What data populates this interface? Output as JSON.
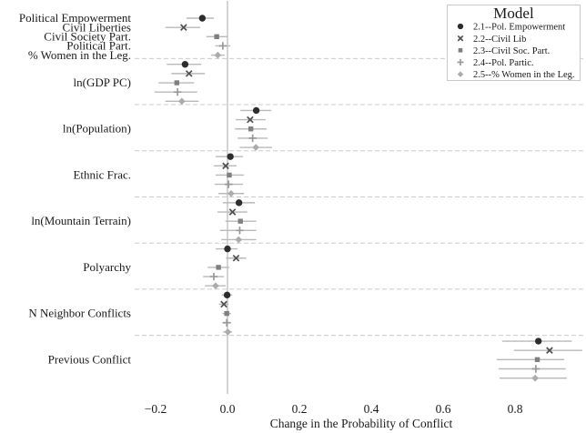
{
  "chart_data": {
    "type": "scatter",
    "subtype": "coefficient-dot-whisker",
    "title": "",
    "xlabel": "Change in the Probability of Conflict",
    "ylabel": "",
    "xlim": [
      -0.26,
      1.0
    ],
    "x_ticks": [
      -0.2,
      0.0,
      0.2,
      0.4,
      0.6,
      0.8
    ],
    "x_tick_labels": [
      "−0.2",
      "0.0",
      "0.2",
      "0.4",
      "0.6",
      "0.8"
    ],
    "grid": "horizontal dashed separators between terms; solid vertical reference line at 0",
    "legend": {
      "title": "Model",
      "position": "upper right"
    },
    "models": [
      {
        "id": "2.1",
        "label": "2.1--Pol. Empowerment",
        "marker": "circle",
        "color": "#2d2d2d"
      },
      {
        "id": "2.2",
        "label": "2.2--Civil Lib",
        "marker": "x",
        "color": "#4f4f4f"
      },
      {
        "id": "2.3",
        "label": "2.3--Civil Soc. Part.",
        "marker": "square",
        "color": "#7f7f7f"
      },
      {
        "id": "2.4",
        "label": "2.4--Pol. Partic.",
        "marker": "plus",
        "color": "#999999"
      },
      {
        "id": "2.5",
        "label": "2.5--% Women in the Leg.",
        "marker": "diamond",
        "color": "#ababab"
      }
    ],
    "groups": [
      {
        "label": "",
        "rows": [
          {
            "row_label": "Political Empowerment",
            "model": "2.1",
            "value": -0.07,
            "ci": [
              -0.114,
              -0.038
            ]
          },
          {
            "row_label": "Civil Liberties",
            "model": "2.2",
            "value": -0.122,
            "ci": [
              -0.173,
              -0.076
            ]
          },
          {
            "row_label": "Civil Society Part.",
            "model": "2.3",
            "value": -0.03,
            "ci": [
              -0.059,
              0.0
            ]
          },
          {
            "row_label": "Political Part.",
            "model": "2.4",
            "value": -0.013,
            "ci": [
              -0.034,
              0.008
            ]
          },
          {
            "row_label": "% Women in the Leg.",
            "model": "2.5",
            "value": -0.027,
            "ci": [
              -0.046,
              -0.008
            ]
          }
        ]
      },
      {
        "label": "ln(GDP PC)",
        "rows": [
          {
            "model": "2.1",
            "value": -0.118,
            "ci": [
              -0.169,
              -0.073
            ]
          },
          {
            "model": "2.2",
            "value": -0.107,
            "ci": [
              -0.156,
              -0.063
            ]
          },
          {
            "model": "2.3",
            "value": -0.141,
            "ci": [
              -0.192,
              -0.093
            ]
          },
          {
            "model": "2.4",
            "value": -0.139,
            "ci": [
              -0.203,
              -0.084
            ]
          },
          {
            "model": "2.5",
            "value": -0.127,
            "ci": [
              -0.173,
              -0.08
            ]
          }
        ]
      },
      {
        "label": "ln(Population)",
        "rows": [
          {
            "model": "2.1",
            "value": 0.08,
            "ci": [
              0.036,
              0.122
            ]
          },
          {
            "model": "2.2",
            "value": 0.063,
            "ci": [
              0.023,
              0.106
            ]
          },
          {
            "model": "2.3",
            "value": 0.065,
            "ci": [
              0.021,
              0.109
            ]
          },
          {
            "model": "2.4",
            "value": 0.07,
            "ci": [
              0.028,
              0.112
            ]
          },
          {
            "model": "2.5",
            "value": 0.079,
            "ci": [
              0.034,
              0.124
            ]
          }
        ]
      },
      {
        "label": "Ethnic Frac.",
        "rows": [
          {
            "model": "2.1",
            "value": 0.008,
            "ci": [
              -0.033,
              0.043
            ]
          },
          {
            "model": "2.2",
            "value": -0.005,
            "ci": [
              -0.038,
              0.025
            ]
          },
          {
            "model": "2.3",
            "value": 0.005,
            "ci": [
              -0.033,
              0.046
            ]
          },
          {
            "model": "2.4",
            "value": 0.003,
            "ci": [
              -0.036,
              0.043
            ]
          },
          {
            "model": "2.5",
            "value": 0.01,
            "ci": [
              -0.025,
              0.046
            ]
          }
        ]
      },
      {
        "label": "ln(Mountain Terrain)",
        "rows": [
          {
            "model": "2.1",
            "value": 0.032,
            "ci": [
              -0.013,
              0.076
            ]
          },
          {
            "model": "2.2",
            "value": 0.014,
            "ci": [
              -0.028,
              0.055
            ]
          },
          {
            "model": "2.3",
            "value": 0.036,
            "ci": [
              -0.006,
              0.08
            ]
          },
          {
            "model": "2.4",
            "value": 0.034,
            "ci": [
              -0.021,
              0.08
            ]
          },
          {
            "model": "2.5",
            "value": 0.031,
            "ci": [
              -0.017,
              0.08
            ]
          }
        ]
      },
      {
        "label": "Polyarchy",
        "rows": [
          {
            "model": "2.1",
            "value": 0.0,
            "ci": [
              -0.033,
              0.028
            ]
          },
          {
            "model": "2.2",
            "value": 0.024,
            "ci": [
              -0.004,
              0.052
            ]
          },
          {
            "model": "2.3",
            "value": -0.025,
            "ci": [
              -0.055,
              0.005
            ]
          },
          {
            "model": "2.4",
            "value": -0.038,
            "ci": [
              -0.068,
              -0.01
            ]
          },
          {
            "model": "2.5",
            "value": -0.033,
            "ci": [
              -0.063,
              -0.005
            ]
          }
        ]
      },
      {
        "label": "N Neighbor Conflicts",
        "rows": [
          {
            "model": "2.1",
            "value": -0.001,
            "ci": [
              -0.016,
              0.013
            ]
          },
          {
            "model": "2.2",
            "value": -0.01,
            "ci": [
              -0.024,
              0.003
            ]
          },
          {
            "model": "2.3",
            "value": -0.002,
            "ci": [
              -0.014,
              0.01
            ]
          },
          {
            "model": "2.4",
            "value": -0.002,
            "ci": [
              -0.014,
              0.01
            ]
          },
          {
            "model": "2.5",
            "value": 0.001,
            "ci": [
              -0.012,
              0.013
            ]
          }
        ]
      },
      {
        "label": "Previous Conflict",
        "rows": [
          {
            "model": "2.1",
            "value": 0.865,
            "ci": [
              0.764,
              0.958
            ]
          },
          {
            "model": "2.2",
            "value": 0.896,
            "ci": [
              0.797,
              0.987
            ]
          },
          {
            "model": "2.3",
            "value": 0.862,
            "ci": [
              0.749,
              0.937
            ]
          },
          {
            "model": "2.4",
            "value": 0.858,
            "ci": [
              0.754,
              0.941
            ]
          },
          {
            "model": "2.5",
            "value": 0.856,
            "ci": [
              0.757,
              0.944
            ]
          }
        ]
      }
    ],
    "styles": {
      "ci_color": "#b9b9b9",
      "zero_line_color": "#c2c2c2",
      "separator_color": "#cbcbcb",
      "text_color": "#1a1a1a",
      "background": "#ffffff"
    }
  }
}
